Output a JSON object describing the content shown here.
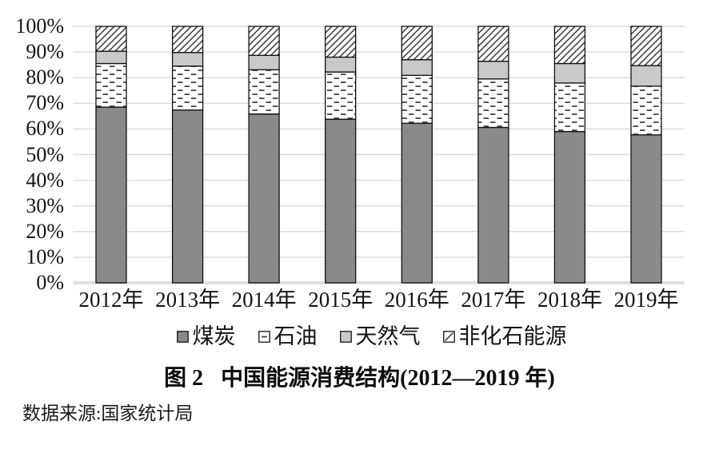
{
  "figure": {
    "caption_label": "图 2",
    "caption_text": "中国能源消费结构(2012—2019 年)",
    "source": "数据来源:国家统计局"
  },
  "chart_data": {
    "type": "bar",
    "stacked": true,
    "title": "图 2 中国能源消费结构(2012—2019 年)",
    "source": "数据来源:国家统计局",
    "categories": [
      "2012年",
      "2013年",
      "2014年",
      "2015年",
      "2016年",
      "2017年",
      "2018年",
      "2019年"
    ],
    "series": [
      {
        "name": "煤炭",
        "style": "solid-dark",
        "color": "#8a8a8a",
        "values": [
          68.5,
          67.4,
          65.8,
          63.8,
          62.2,
          60.6,
          59.0,
          57.7
        ]
      },
      {
        "name": "石油",
        "style": "dash-pattern",
        "color": "#ffffff",
        "values": [
          17.0,
          17.1,
          17.3,
          18.4,
          18.7,
          18.9,
          18.9,
          19.0
        ]
      },
      {
        "name": "天然气",
        "style": "solid-light",
        "color": "#c9c9c9",
        "values": [
          4.8,
          5.3,
          5.6,
          5.8,
          6.1,
          6.9,
          7.6,
          8.0
        ]
      },
      {
        "name": "非化石能源",
        "style": "diag-hatch",
        "color": "#ffffff",
        "values": [
          9.7,
          10.2,
          11.3,
          12.0,
          13.0,
          13.6,
          14.5,
          15.3
        ]
      }
    ],
    "xlabel": "",
    "ylabel": "",
    "ylim": [
      0,
      100
    ],
    "yticks": [
      "0%",
      "10%",
      "20%",
      "30%",
      "40%",
      "50%",
      "60%",
      "70%",
      "80%",
      "90%",
      "100%"
    ],
    "grid": true,
    "gridline_color": "#dadada",
    "baseline_color": "#e0e0e0",
    "bar_outline_color": "#111111",
    "pattern_ink_color": "#3a3a3a",
    "legend_position": "bottom"
  }
}
